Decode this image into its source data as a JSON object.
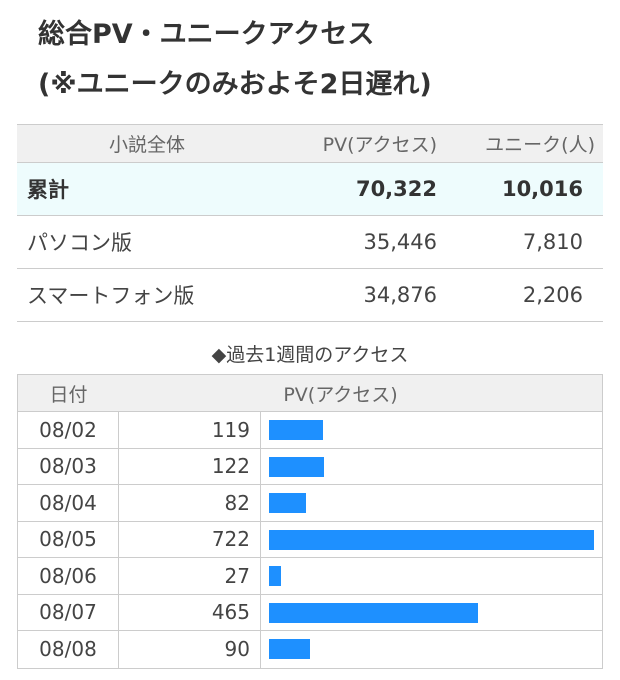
{
  "title": {
    "line1": "総合PV・ユニークアクセス",
    "line2": "(※ユニークのみおよそ2日遅れ)"
  },
  "summary": {
    "headers": [
      "小説全体",
      "PV(アクセス)",
      "ユニーク(人)"
    ],
    "rows": [
      {
        "label": "累計",
        "pv": "70,322",
        "unique": "10,016"
      },
      {
        "label": "パソコン版",
        "pv": "35,446",
        "unique": "7,810"
      },
      {
        "label": "スマートフォン版",
        "pv": "34,876",
        "unique": "2,206"
      }
    ]
  },
  "weekly": {
    "title": "◆過去1週間のアクセス",
    "headers": [
      "日付",
      "PV(アクセス)"
    ],
    "max": 722,
    "bar_color": "#1e90ff",
    "rows": [
      {
        "date": "08/02",
        "pv": 119
      },
      {
        "date": "08/03",
        "pv": 122
      },
      {
        "date": "08/04",
        "pv": 82
      },
      {
        "date": "08/05",
        "pv": 722
      },
      {
        "date": "08/06",
        "pv": 27
      },
      {
        "date": "08/07",
        "pv": 465
      },
      {
        "date": "08/08",
        "pv": 90
      }
    ]
  }
}
